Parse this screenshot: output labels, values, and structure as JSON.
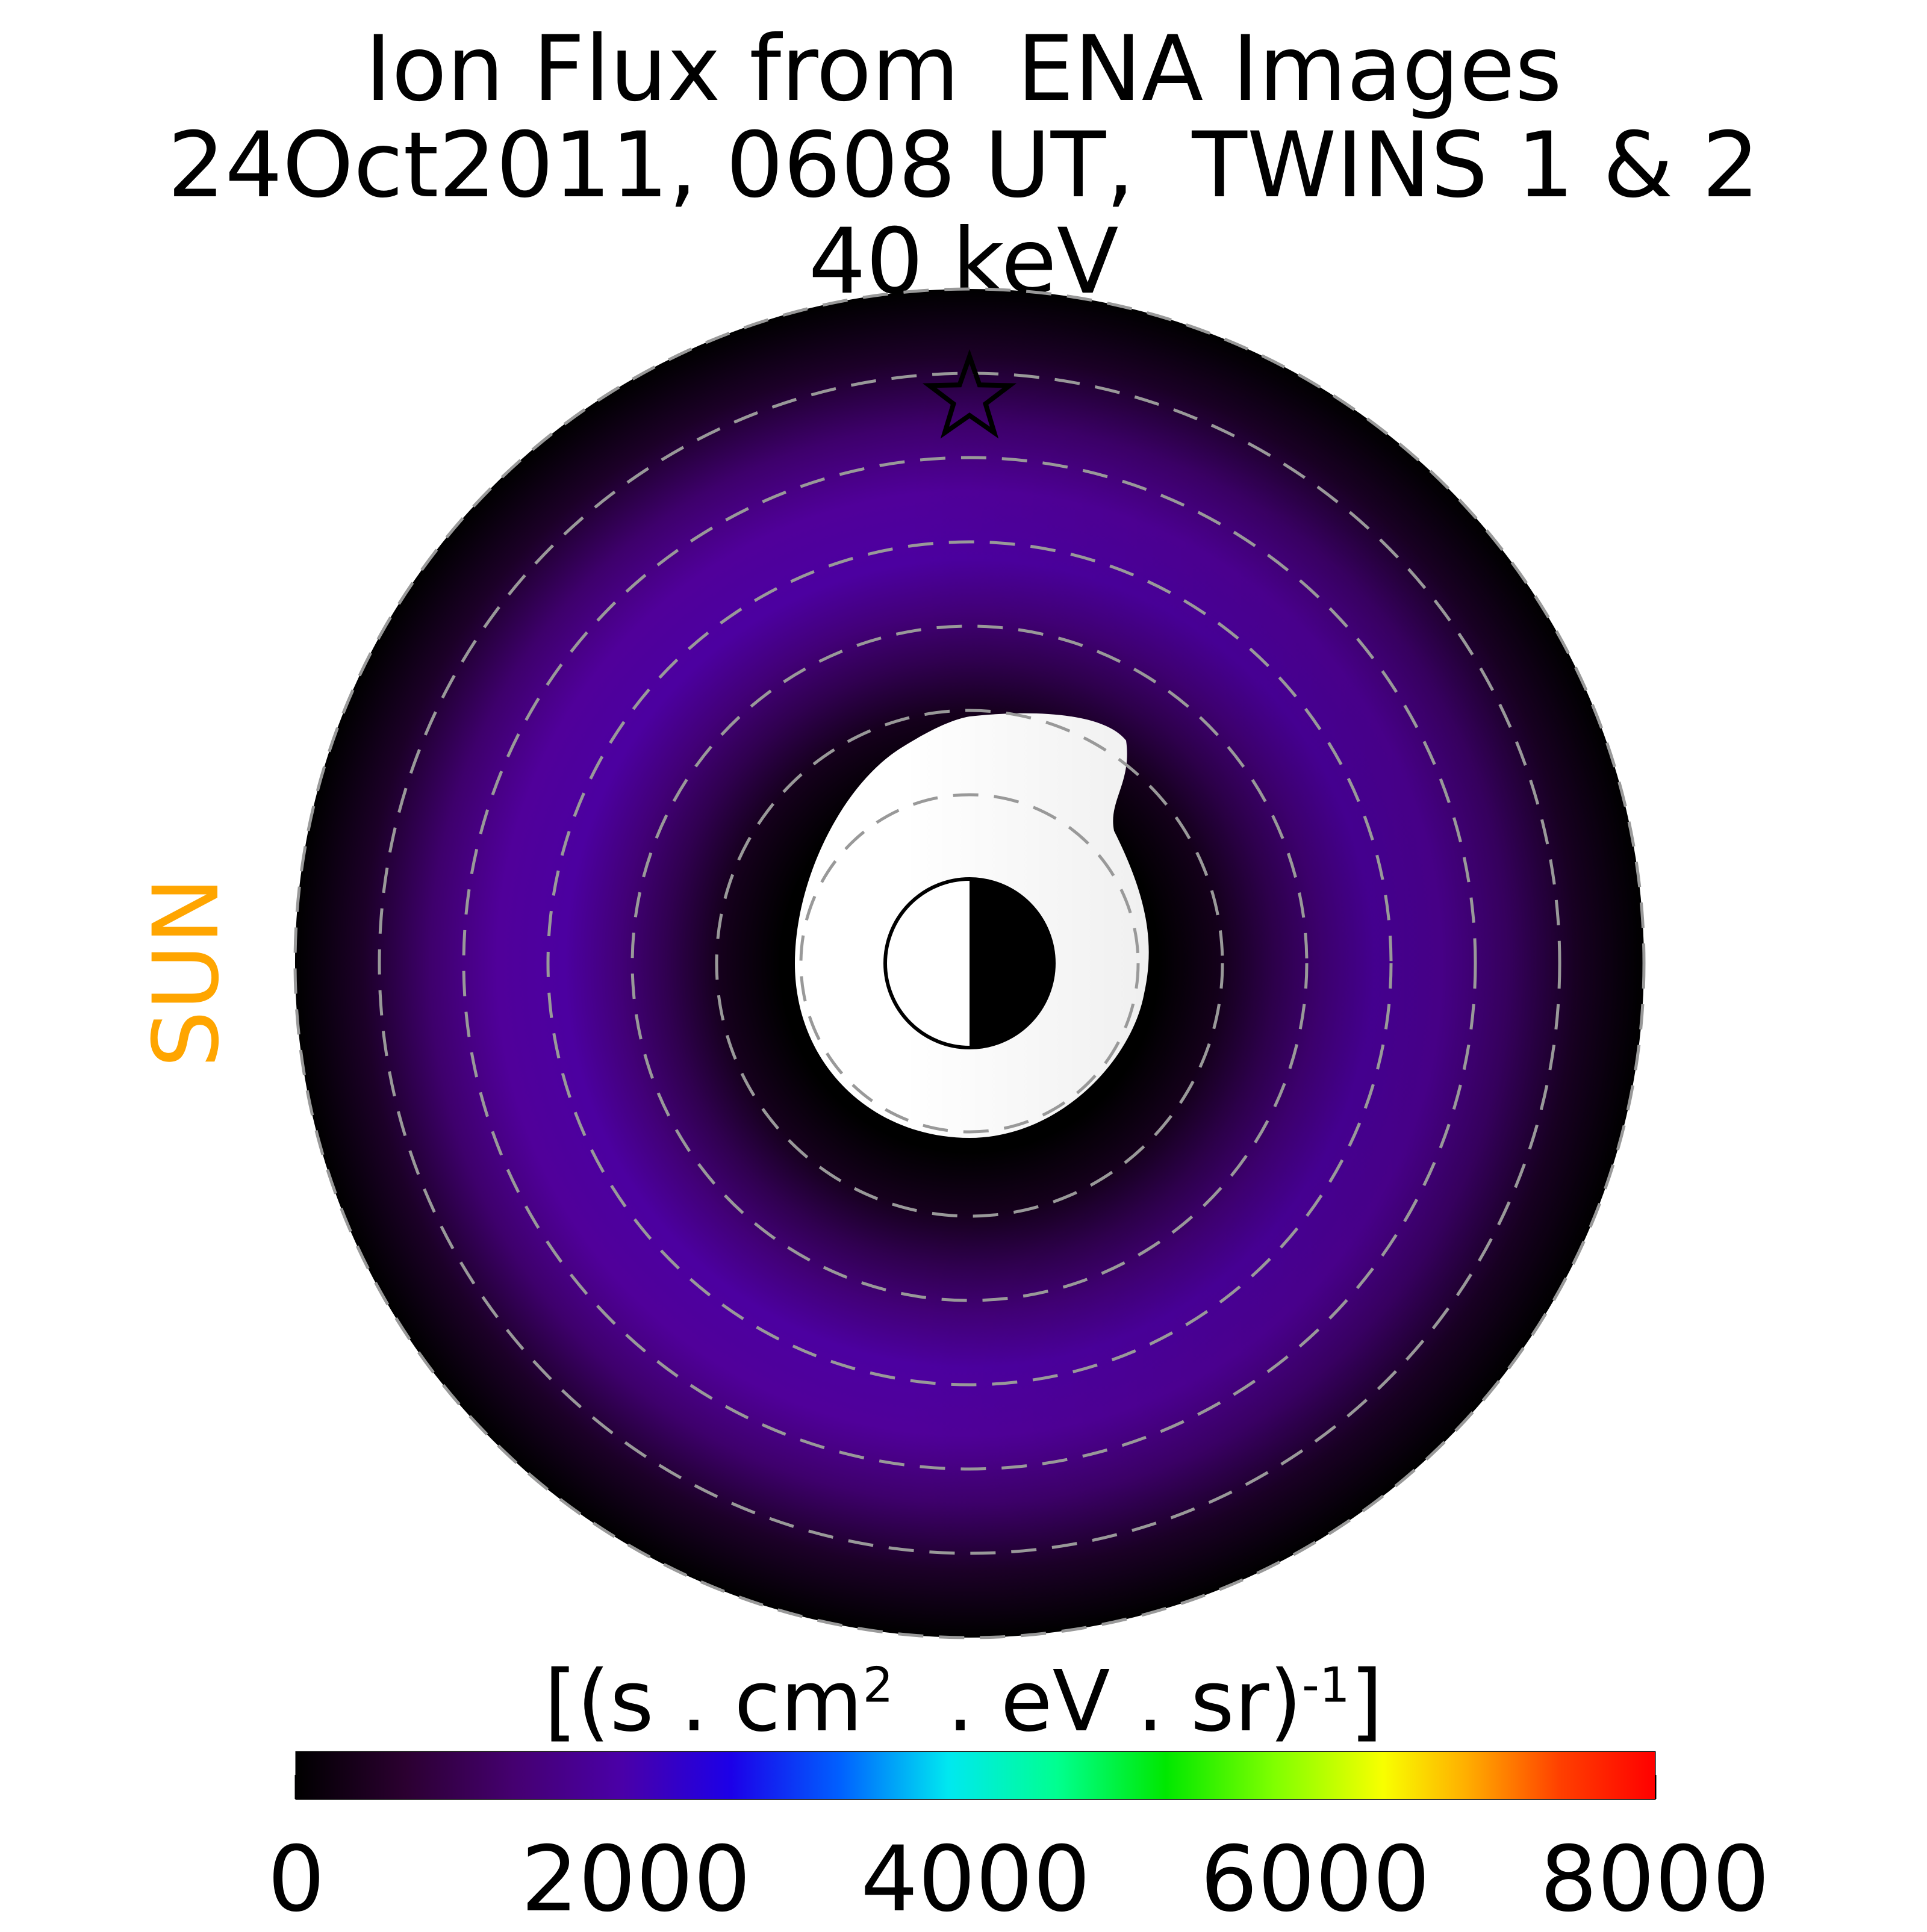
{
  "title": {
    "line1": "Ion Flux from  ENA Images",
    "line2": "24Oct2011, 0608 UT,  TWINS 1 & 2",
    "line3": "40 keV"
  },
  "sun_label": "SUN",
  "colors": {
    "sun_label": "#ffa500",
    "flux_low": "#000000",
    "flux_mid": "#4a00a8",
    "grid_ring": "#999999"
  },
  "chart_data": {
    "type": "heatmap",
    "description_kind": "polar equatorial ion flux map",
    "colorbar": {
      "label_main": "[(s . cm",
      "label_sup1": "2",
      "label_mid": "  . eV . sr)",
      "label_sup2": "-1",
      "label_end": "]",
      "min": 0,
      "max": 8000,
      "ticks": [
        0,
        2000,
        4000,
        6000,
        8000
      ],
      "colormap": "nipy_spectral"
    },
    "rings": [
      2,
      3,
      4,
      5,
      6,
      7,
      8
    ],
    "markers": [
      {
        "kind": "star",
        "label": "",
        "x": 0,
        "y": 6.7
      }
    ],
    "earth": {
      "radius": 1,
      "day_side": "left"
    },
    "flux_profile": [
      {
        "r": 2.3,
        "value": 0
      },
      {
        "r": 3.2,
        "value": 250
      },
      {
        "r": 4.0,
        "value": 900
      },
      {
        "r": 5.0,
        "value": 1350
      },
      {
        "r": 6.0,
        "value": 1200
      },
      {
        "r": 7.0,
        "value": 900
      },
      {
        "r": 8.0,
        "value": 300
      }
    ]
  }
}
